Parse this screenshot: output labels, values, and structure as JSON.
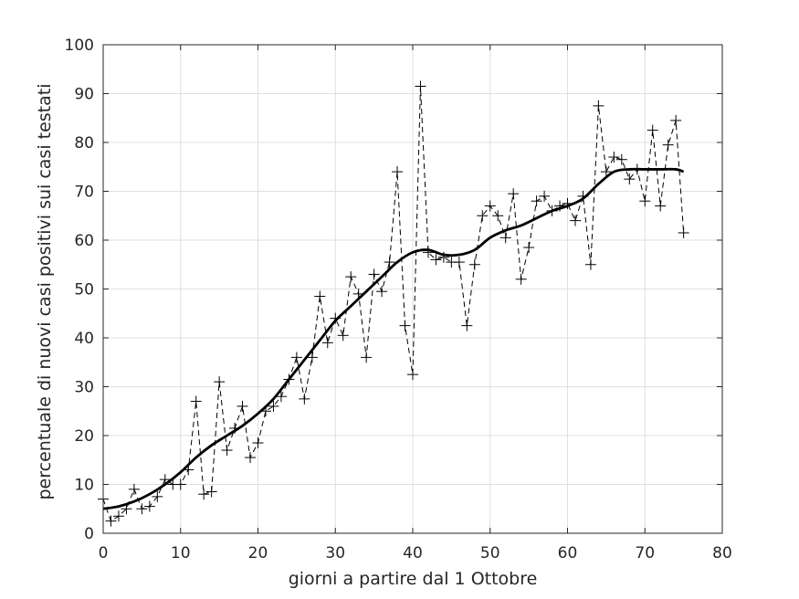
{
  "chart_data": {
    "type": "line",
    "title": "",
    "xlabel": "giorni a partire dal 1 Ottobre",
    "ylabel": "percentuale di nuovi casi positivi sui casi testati",
    "xlim": [
      0,
      80
    ],
    "ylim": [
      0,
      100
    ],
    "xticks": [
      "0",
      "10",
      "20",
      "30",
      "40",
      "50",
      "60",
      "70",
      "80"
    ],
    "yticks": [
      "0",
      "10",
      "20",
      "30",
      "40",
      "50",
      "60",
      "70",
      "80",
      "90",
      "100"
    ],
    "grid": true,
    "legend": "none",
    "colors": {
      "series": "#000000",
      "grid": "#dfdfdf",
      "axis": "#262626"
    },
    "series": [
      {
        "style": "dashed with plus markers",
        "x": [
          0,
          1,
          2,
          3,
          4,
          5,
          6,
          7,
          8,
          9,
          10,
          11,
          12,
          13,
          14,
          15,
          16,
          17,
          18,
          19,
          20,
          21,
          22,
          23,
          24,
          25,
          26,
          27,
          28,
          29,
          30,
          31,
          32,
          33,
          34,
          35,
          36,
          37,
          38,
          39,
          40,
          41,
          42,
          43,
          44,
          45,
          46,
          47,
          48,
          49,
          50,
          51,
          52,
          53,
          54,
          55,
          56,
          57,
          58,
          59,
          60,
          61,
          62,
          63,
          64,
          65,
          66,
          67,
          68,
          69,
          70,
          71,
          72,
          73,
          74,
          75
        ],
        "y": [
          7,
          2.5,
          3.5,
          5,
          9,
          5,
          5.5,
          7.5,
          11,
          10,
          10,
          13,
          27,
          8,
          8.5,
          31,
          17,
          21.5,
          26,
          15.5,
          18.5,
          25,
          26,
          28,
          31.5,
          36,
          27.5,
          36,
          48.5,
          39,
          44,
          40.5,
          52.5,
          49,
          36,
          53,
          49.5,
          55.5,
          74,
          42.5,
          32.5,
          91.5,
          57.5,
          56,
          56.5,
          55.5,
          55.5,
          42.5,
          55,
          65,
          67,
          65,
          60.5,
          69.5,
          52,
          58.5,
          68,
          69,
          66,
          67,
          67.5,
          64,
          69,
          55,
          87.5,
          74,
          77,
          76.5,
          72.5,
          74.5,
          68,
          82.5,
          67,
          79.5,
          84.5,
          61.5
        ]
      },
      {
        "style": "solid thick",
        "x": [
          0,
          2,
          4,
          6,
          8,
          10,
          12,
          14,
          16,
          18,
          20,
          22,
          24,
          26,
          28,
          30,
          32,
          34,
          36,
          38,
          40,
          42,
          44,
          46,
          48,
          50,
          52,
          54,
          56,
          58,
          60,
          62,
          64,
          66,
          68,
          70,
          72,
          74,
          75
        ],
        "y": [
          5,
          5.5,
          6.5,
          8,
          10,
          12.5,
          15.5,
          18,
          20,
          22,
          24.5,
          27.5,
          31.5,
          35.5,
          39.5,
          43.5,
          46.5,
          49.5,
          52.5,
          55.5,
          57.5,
          58,
          57,
          57,
          58,
          60.5,
          62,
          63,
          64.5,
          66,
          67,
          68.5,
          71.5,
          74,
          74.5,
          74.5,
          74.5,
          74.5,
          74
        ]
      }
    ]
  }
}
